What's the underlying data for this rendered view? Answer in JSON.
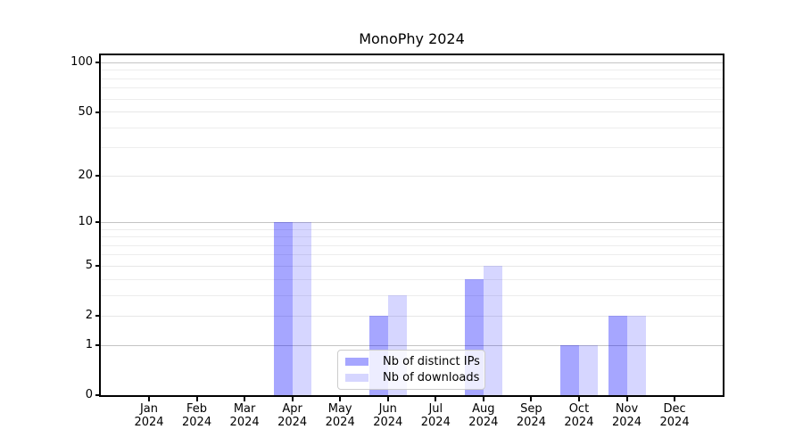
{
  "chart_data": {
    "type": "bar",
    "title": "MonoPhy 2024",
    "categories": [
      {
        "month": "Jan",
        "year": "2024"
      },
      {
        "month": "Feb",
        "year": "2024"
      },
      {
        "month": "Mar",
        "year": "2024"
      },
      {
        "month": "Apr",
        "year": "2024"
      },
      {
        "month": "May",
        "year": "2024"
      },
      {
        "month": "Jun",
        "year": "2024"
      },
      {
        "month": "Jul",
        "year": "2024"
      },
      {
        "month": "Aug",
        "year": "2024"
      },
      {
        "month": "Sep",
        "year": "2024"
      },
      {
        "month": "Oct",
        "year": "2024"
      },
      {
        "month": "Nov",
        "year": "2024"
      },
      {
        "month": "Dec",
        "year": "2024"
      }
    ],
    "series": [
      {
        "name": "Nb of distinct IPs",
        "color": "rgba(0,0,255,0.35)",
        "color_hex_on_white": "#a9a9f1",
        "values": [
          0,
          0,
          0,
          10,
          0,
          2,
          0,
          4,
          0,
          1,
          2,
          0
        ]
      },
      {
        "name": "Nb of downloads",
        "color": "rgba(0,0,255,0.16)",
        "color_hex_on_white": "#d9d9f8",
        "values": [
          0,
          0,
          0,
          10,
          0,
          3,
          0,
          5,
          0,
          1,
          2,
          0
        ]
      }
    ],
    "y_axis": {
      "scale": "log1p",
      "ylim": [
        0,
        111
      ],
      "max": 111,
      "ticks": [
        0,
        1,
        2,
        5,
        10,
        20,
        50,
        100
      ],
      "tick_labels": [
        "0",
        "1",
        "2",
        "5",
        "10",
        "20",
        "50",
        "100"
      ],
      "decade_ticks": [
        1,
        10,
        100
      ],
      "minor_ticks": [
        3,
        4,
        6,
        7,
        8,
        9,
        30,
        40,
        60,
        70,
        80,
        90
      ]
    },
    "legend": {
      "position": "lower-center",
      "entries": [
        "Nb of distinct IPs",
        "Nb of downloads"
      ]
    },
    "grid": "on"
  }
}
